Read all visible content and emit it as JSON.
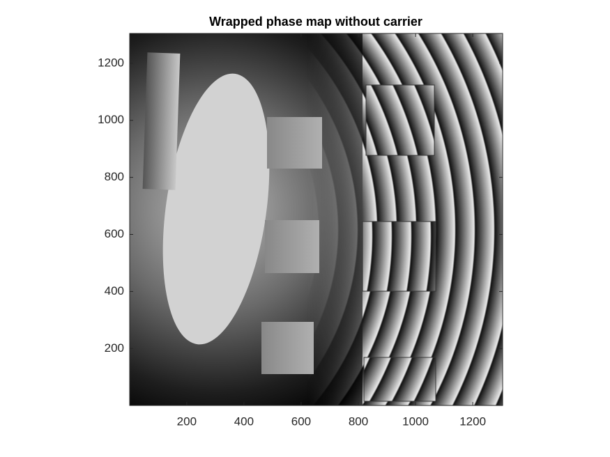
{
  "chart_data": {
    "type": "image",
    "title": "Wrapped phase map without carrier",
    "xlim": [
      0.5,
      1304.5
    ],
    "ylim": [
      0.5,
      1304.5
    ],
    "xticks": [
      200,
      400,
      600,
      800,
      1000,
      1200
    ],
    "yticks": [
      200,
      400,
      600,
      800,
      1000,
      1200
    ]
  }
}
